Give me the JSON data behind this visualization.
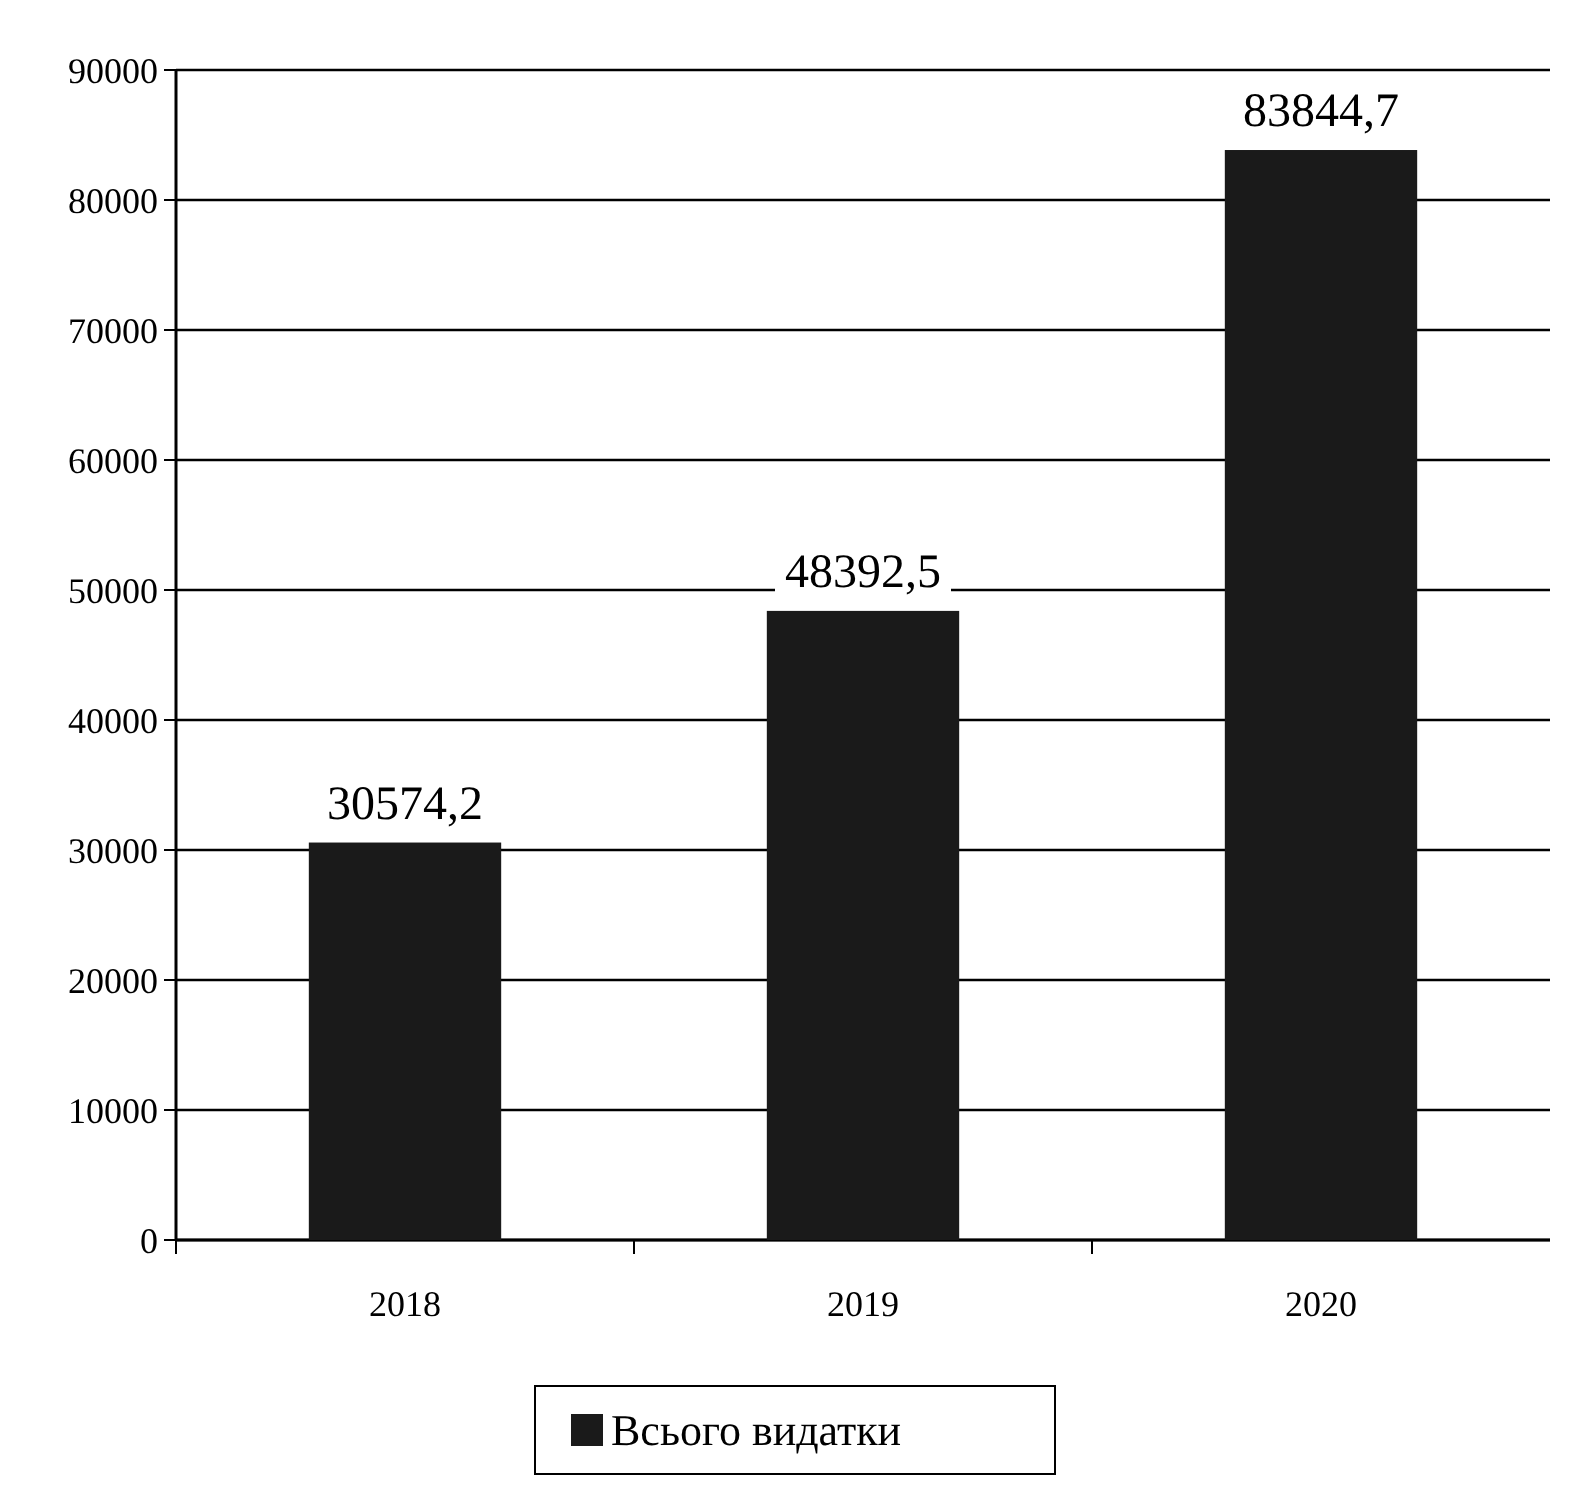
{
  "chart_data": {
    "type": "bar",
    "categories": [
      "2018",
      "2019",
      "2020"
    ],
    "series": [
      {
        "name": "Всього видатки",
        "color": "#1a1a1a",
        "values": [
          30574.2,
          48392.5,
          83844.7
        ],
        "value_labels": [
          "30574,2",
          "48392,5",
          "83844,7"
        ]
      }
    ],
    "ylim": [
      0,
      90000
    ],
    "yticks": [
      0,
      10000,
      20000,
      30000,
      40000,
      50000,
      60000,
      70000,
      80000,
      90000
    ],
    "grid": "y",
    "legend": "bottom"
  }
}
